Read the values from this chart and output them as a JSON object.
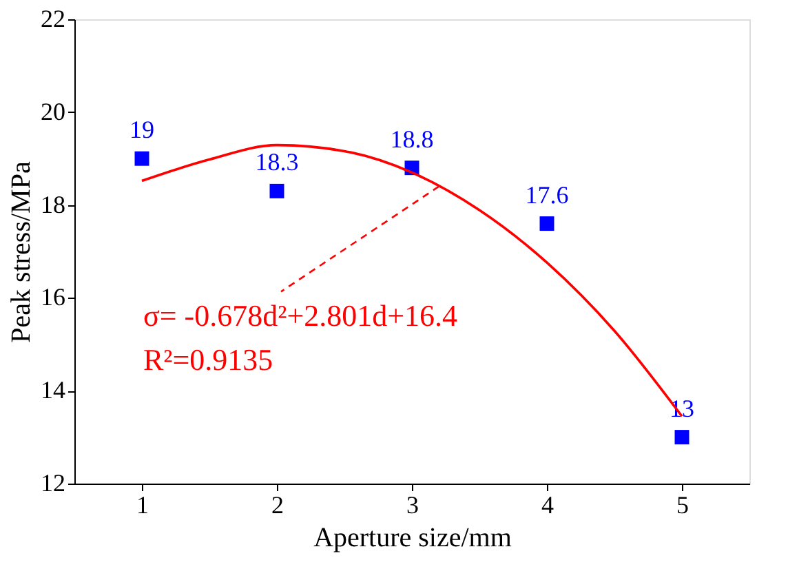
{
  "chart_data": {
    "type": "scatter",
    "xlabel": "Aperture size/mm",
    "ylabel": "Peak stress/MPa",
    "x": [
      1,
      2,
      3,
      4,
      5
    ],
    "series": [
      {
        "color": "#0000ff",
        "marker": "square",
        "values": [
          19,
          18.3,
          18.8,
          17.6,
          13
        ],
        "value_labels": [
          "19",
          "18.3",
          "18.8",
          "17.6",
          "13"
        ]
      },
      {
        "type": "line",
        "color": "#ff0000",
        "x": [
          1,
          1.5,
          2,
          2.5,
          3,
          3.5,
          4,
          4.5,
          5
        ],
        "values": [
          18.52,
          18.98,
          19.29,
          19.16,
          18.7,
          17.89,
          16.76,
          15.29,
          13.45
        ]
      }
    ],
    "xlim": [
      0.5,
      5.5
    ],
    "xticks": [
      1,
      2,
      3,
      4,
      5
    ],
    "ylim": [
      12,
      22
    ],
    "yticks": [
      12,
      14,
      16,
      18,
      20,
      22
    ],
    "grid": false,
    "annotations": [
      {
        "text": "σ= -0.678d²+2.801d+16.4",
        "x": 3.2,
        "y": 18.4
      },
      "R²=0.9135"
    ]
  }
}
